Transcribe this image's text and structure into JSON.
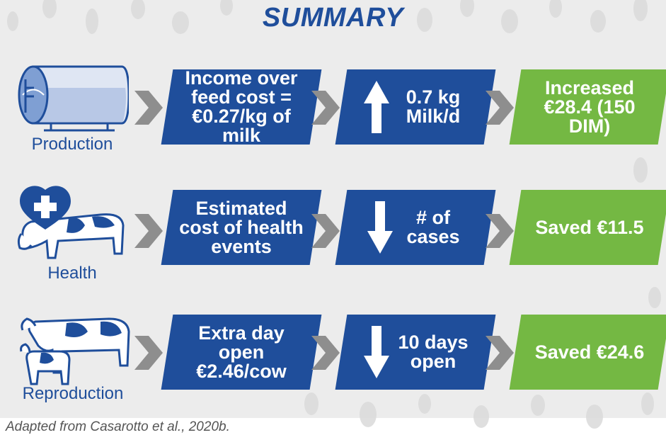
{
  "title": "SUMMARY",
  "caption": "Adapted from Casarotto et al., 2020b.",
  "colors": {
    "blue": "#1f4e9b",
    "green": "#74b843",
    "arrow": "#8e8e8e"
  },
  "rows": [
    {
      "label": "Production",
      "icon": "milk-tank-icon",
      "cost": "Income over feed cost = €0.27/kg of milk",
      "effect_direction": "up",
      "effect": "0.7 kg Milk/d",
      "result": "Increased €28.4 (150 DIM)"
    },
    {
      "label": "Health",
      "icon": "heart-cow-icon",
      "cost": "Estimated cost of health events",
      "effect_direction": "down",
      "effect": "# of cases",
      "result": "Saved €11.5"
    },
    {
      "label": "Reproduction",
      "icon": "cow-calf-icon",
      "cost": "Extra day open €2.46/cow",
      "effect_direction": "down",
      "effect": "10 days open",
      "result": "Saved €24.6"
    }
  ]
}
